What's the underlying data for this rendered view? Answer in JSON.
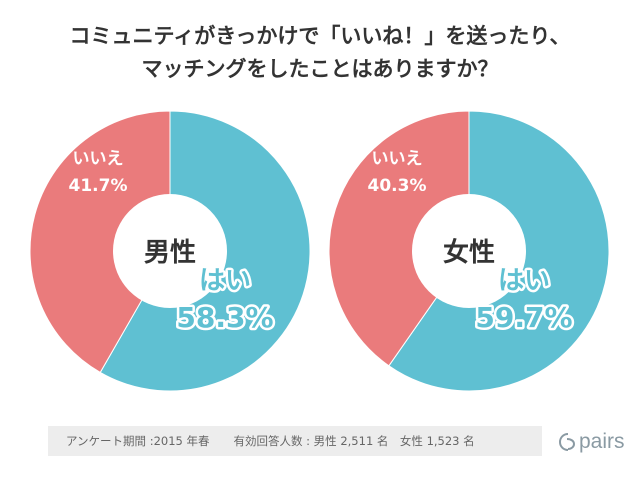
{
  "title": {
    "line1": "コミュニティがきっかけで「いいね！」を送ったり、",
    "line2": "マッチングをしたことはありますか？"
  },
  "chart_data": [
    {
      "type": "pie",
      "center_label": "男性",
      "slices": [
        {
          "label": "はい",
          "value": 58.3,
          "display": "58.3%",
          "color": "#5fc0d2"
        },
        {
          "label": "いいえ",
          "value": 41.7,
          "display": "41.7%",
          "color": "#ea7b7c"
        }
      ]
    },
    {
      "type": "pie",
      "center_label": "女性",
      "slices": [
        {
          "label": "はい",
          "value": 59.7,
          "display": "59.7%",
          "color": "#5fc0d2"
        },
        {
          "label": "いいえ",
          "value": 40.3,
          "display": "40.3%",
          "color": "#ea7b7c"
        }
      ]
    }
  ],
  "footer": {
    "survey_period": "アンケート期間 :2015 年春",
    "respondents": "有効回答人数 : 男性 2,511 名　女性 1,523 名"
  },
  "logo": {
    "text": "pairs",
    "icon": "pairs-logo-icon",
    "color": "#8a9aa3"
  }
}
